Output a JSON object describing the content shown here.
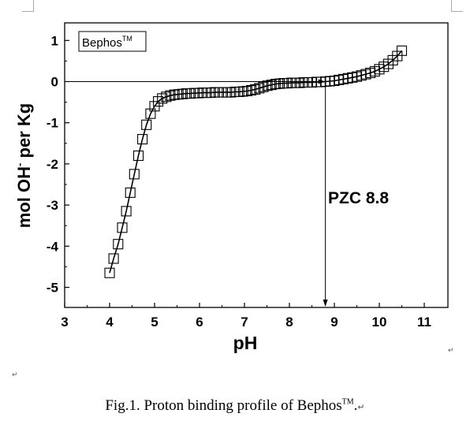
{
  "chart_data": {
    "type": "scatter",
    "xlabel": "pH",
    "ylabel": "mol OH",
    "ylabel_sup": "-",
    "ylabel_tail": " per Kg",
    "xlim": [
      3,
      11.5
    ],
    "ylim": [
      -5.5,
      1.5
    ],
    "xticks": [
      "3",
      "4",
      "5",
      "6",
      "7",
      "8",
      "9",
      "10",
      "11"
    ],
    "yticks": [
      "1",
      "0",
      "-1",
      "-2",
      "-3",
      "-4",
      "-5"
    ],
    "legend_label": "Bephos",
    "legend_sup": "TM",
    "annotation": "PZC 8.8",
    "pzc": 8.8,
    "series": [
      {
        "marker": "open-square",
        "x": [
          4.0,
          4.09,
          4.19,
          4.28,
          4.37,
          4.46,
          4.55,
          4.64,
          4.73,
          4.82,
          4.91,
          5.0,
          5.08,
          5.17,
          5.26,
          5.35,
          5.44,
          5.53,
          5.62,
          5.71,
          5.8,
          5.89,
          5.98,
          6.07,
          6.16,
          6.25,
          6.34,
          6.43,
          6.52,
          6.61,
          6.7,
          6.79,
          6.88,
          6.97,
          7.06,
          7.15,
          7.24,
          7.33,
          7.42,
          7.51,
          7.6,
          7.69,
          7.78,
          7.87,
          7.96,
          8.05,
          8.14,
          8.23,
          8.32,
          8.41,
          8.5,
          8.6,
          8.7,
          8.8,
          8.9,
          9.0,
          9.1,
          9.2,
          9.3,
          9.4,
          9.5,
          9.6,
          9.7,
          9.8,
          9.9,
          10.0,
          10.1,
          10.2,
          10.3,
          10.4,
          10.5
        ],
        "y": [
          -4.65,
          -4.3,
          -3.95,
          -3.55,
          -3.15,
          -2.7,
          -2.25,
          -1.8,
          -1.4,
          -1.05,
          -0.78,
          -0.6,
          -0.48,
          -0.41,
          -0.37,
          -0.34,
          -0.32,
          -0.31,
          -0.3,
          -0.29,
          -0.29,
          -0.28,
          -0.28,
          -0.27,
          -0.27,
          -0.27,
          -0.26,
          -0.26,
          -0.26,
          -0.26,
          -0.26,
          -0.25,
          -0.25,
          -0.24,
          -0.23,
          -0.21,
          -0.19,
          -0.16,
          -0.13,
          -0.1,
          -0.08,
          -0.06,
          -0.05,
          -0.04,
          -0.04,
          -0.03,
          -0.03,
          -0.03,
          -0.02,
          -0.02,
          -0.02,
          -0.01,
          -0.01,
          0.0,
          0.01,
          0.02,
          0.04,
          0.06,
          0.08,
          0.1,
          0.12,
          0.15,
          0.18,
          0.21,
          0.25,
          0.3,
          0.36,
          0.43,
          0.52,
          0.62,
          0.75
        ]
      }
    ]
  },
  "caption": {
    "text": "Fig.1. Proton binding profile of Bephos",
    "sup": "TM",
    "tail": ".",
    "para_mark": "↵"
  },
  "marks": {
    "para": "↵"
  }
}
